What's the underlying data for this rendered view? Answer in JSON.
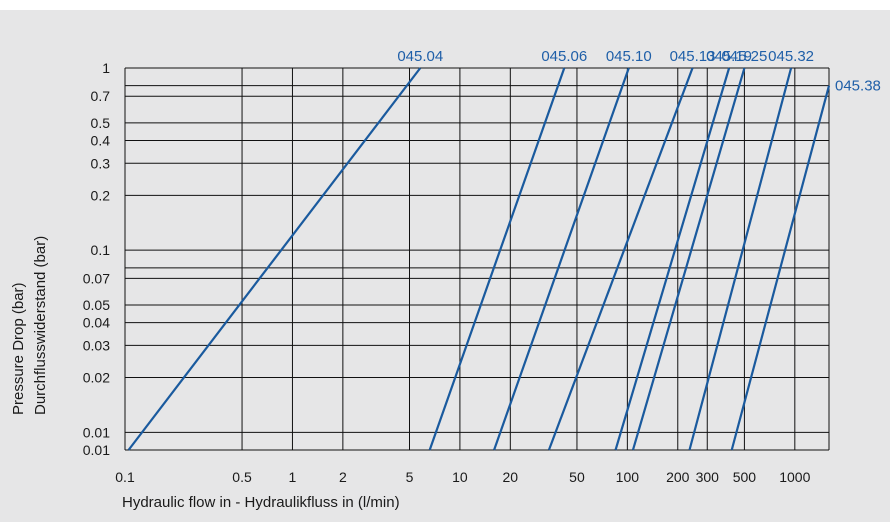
{
  "chart_data": {
    "type": "line",
    "title": "",
    "xlabel": "Hydraulic flow in  - Hydraulikfluss in (l/min)",
    "ylabel_line1": "Pressure Drop (bar)",
    "ylabel_line2": "Durchflusswiderstand (bar)",
    "x_scale": "log",
    "y_scale": "log",
    "xlim": [
      0.1,
      1600
    ],
    "ylim": [
      0.008,
      1
    ],
    "grid": true,
    "x_ticks": [
      {
        "value": 0.1,
        "label": "0.1"
      },
      {
        "value": 0.5,
        "label": "0.5"
      },
      {
        "value": 1,
        "label": "1"
      },
      {
        "value": 2,
        "label": "2"
      },
      {
        "value": 5,
        "label": "5"
      },
      {
        "value": 10,
        "label": "10"
      },
      {
        "value": 20,
        "label": "20"
      },
      {
        "value": 50,
        "label": "50"
      },
      {
        "value": 100,
        "label": "100"
      },
      {
        "value": 200,
        "label": "200"
      },
      {
        "value": 300,
        "label": "300"
      },
      {
        "value": 500,
        "label": "500"
      },
      {
        "value": 1000,
        "label": "1000"
      }
    ],
    "y_ticks": [
      {
        "value": 1,
        "label": "1"
      },
      {
        "value": 0.7,
        "label": "0.7"
      },
      {
        "value": 0.5,
        "label": "0.5"
      },
      {
        "value": 0.4,
        "label": "0.4"
      },
      {
        "value": 0.3,
        "label": "0.3"
      },
      {
        "value": 0.2,
        "label": "0.2"
      },
      {
        "value": 0.1,
        "label": "0.1"
      },
      {
        "value": 0.07,
        "label": "0.07"
      },
      {
        "value": 0.05,
        "label": "0.05"
      },
      {
        "value": 0.04,
        "label": "0.04"
      },
      {
        "value": 0.03,
        "label": "0.03"
      },
      {
        "value": 0.02,
        "label": "0.02"
      },
      {
        "value": 0.01,
        "label": "0.01"
      },
      {
        "value": 0.008,
        "label": "0.01"
      }
    ],
    "extra_grid_y": [
      0.8,
      0.08
    ],
    "series": [
      {
        "name": "045.04",
        "points": [
          [
            0.105,
            0.008
          ],
          [
            5.8,
            1.0
          ]
        ]
      },
      {
        "name": "045.06",
        "points": [
          [
            6.6,
            0.008
          ],
          [
            42,
            1.0
          ]
        ]
      },
      {
        "name": "045.10",
        "points": [
          [
            16,
            0.008
          ],
          [
            102,
            1.0
          ]
        ]
      },
      {
        "name": "045.13",
        "points": [
          [
            34,
            0.008
          ],
          [
            245,
            1.0
          ]
        ]
      },
      {
        "name": "045.19",
        "points": [
          [
            85,
            0.008
          ],
          [
            405,
            1.0
          ]
        ]
      },
      {
        "name": "045.25",
        "points": [
          [
            108,
            0.008
          ],
          [
            500,
            1.0
          ]
        ]
      },
      {
        "name": "045.32",
        "points": [
          [
            235,
            0.008
          ],
          [
            950,
            1.0
          ]
        ]
      },
      {
        "name": "045.38",
        "points": [
          [
            420,
            0.008
          ],
          [
            1600,
            0.8
          ]
        ]
      }
    ]
  }
}
